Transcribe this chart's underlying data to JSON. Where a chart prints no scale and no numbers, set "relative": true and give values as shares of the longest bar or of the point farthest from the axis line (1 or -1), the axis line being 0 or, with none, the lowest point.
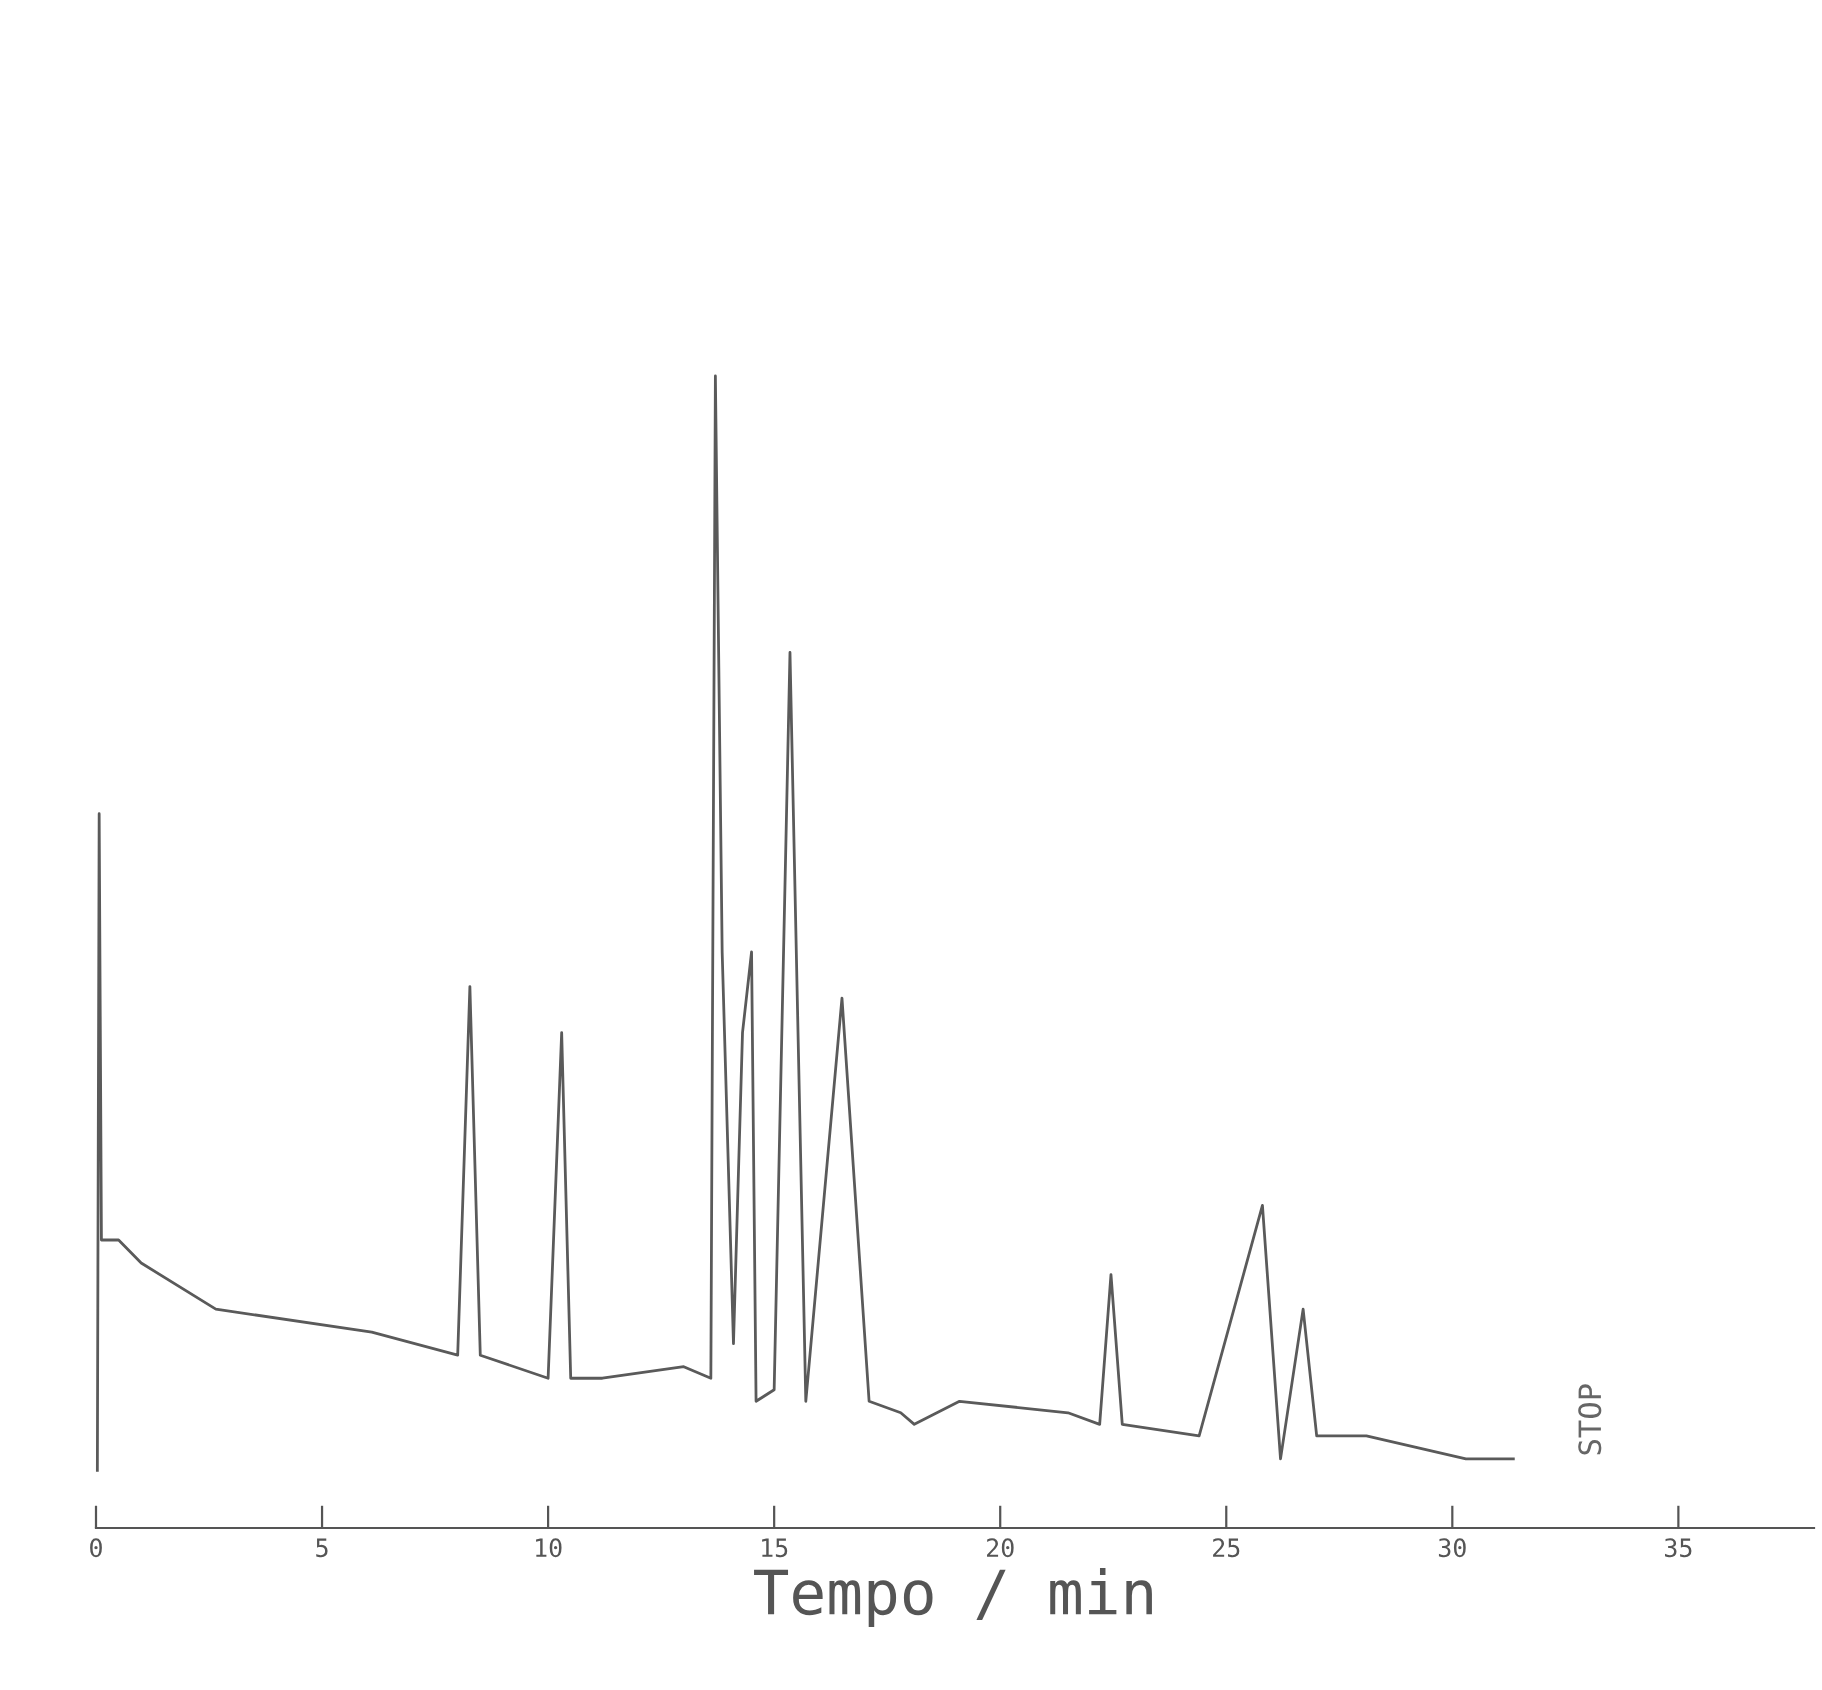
{
  "chart_data": {
    "type": "line",
    "relative": true,
    "xlabel": "Tempo / min",
    "xlim": [
      0,
      38
    ],
    "xticks": [
      0,
      5,
      10,
      15,
      20,
      25,
      30,
      35
    ],
    "grid": false,
    "legend": false,
    "marker": "none",
    "line_style": "solid",
    "x": [
      0.03,
      0.07,
      0.12,
      0.5,
      1.0,
      2.65,
      6.1,
      8.0,
      8.27,
      8.5,
      10.0,
      10.3,
      10.5,
      11.2,
      13.0,
      13.6,
      13.7,
      13.85,
      14.1,
      14.3,
      14.5,
      14.6,
      15.0,
      15.35,
      15.7,
      16.5,
      17.1,
      17.8,
      18.1,
      19.1,
      21.5,
      22.2,
      22.45,
      22.7,
      24.4,
      25.8,
      26.2,
      26.7,
      27.0,
      28.1,
      30.3,
      31.35
    ],
    "series": [
      {
        "color": "#5a5a5a",
        "values": [
          0.05,
          0.62,
          0.25,
          0.25,
          0.23,
          0.19,
          0.17,
          0.15,
          0.47,
          0.15,
          0.13,
          0.43,
          0.13,
          0.13,
          0.14,
          0.13,
          1.0,
          0.5,
          0.16,
          0.43,
          0.5,
          0.11,
          0.12,
          0.76,
          0.11,
          0.46,
          0.11,
          0.1,
          0.09,
          0.11,
          0.1,
          0.09,
          0.22,
          0.09,
          0.08,
          0.28,
          0.06,
          0.19,
          0.08,
          0.08,
          0.06,
          0.06
        ]
      }
    ],
    "annotations": [
      "STOP"
    ]
  }
}
